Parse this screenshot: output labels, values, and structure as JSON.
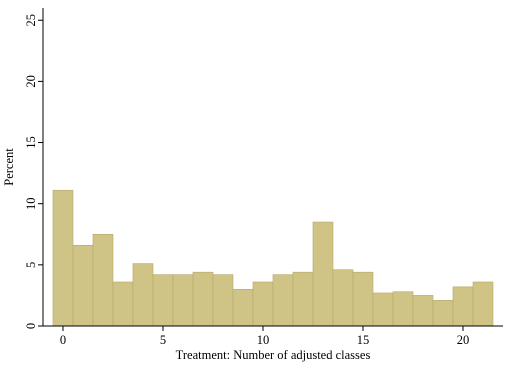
{
  "chart_data": {
    "type": "bar",
    "title": "",
    "xlabel": "Treatment: Number of adjusted classes",
    "ylabel": "Percent",
    "x": [
      0,
      1,
      2,
      3,
      4,
      5,
      6,
      7,
      8,
      9,
      10,
      11,
      12,
      13,
      14,
      15,
      16,
      17,
      18,
      19,
      20,
      21
    ],
    "values": [
      11.1,
      6.6,
      7.5,
      3.6,
      5.1,
      4.2,
      4.2,
      4.4,
      4.2,
      3.0,
      3.6,
      4.2,
      4.4,
      8.5,
      4.6,
      4.4,
      2.7,
      2.8,
      2.5,
      2.1,
      3.2,
      3.6
    ],
    "xticks": [
      0,
      5,
      10,
      15,
      20
    ],
    "yticks": [
      0,
      5,
      10,
      15,
      20,
      25
    ],
    "xlim": [
      -1,
      22
    ],
    "ylim": [
      0,
      26
    ],
    "grid": false,
    "legend": "none",
    "bar_fill": "#cfc386",
    "bar_edge": "#b5a86a",
    "axis_color": "#000000"
  }
}
